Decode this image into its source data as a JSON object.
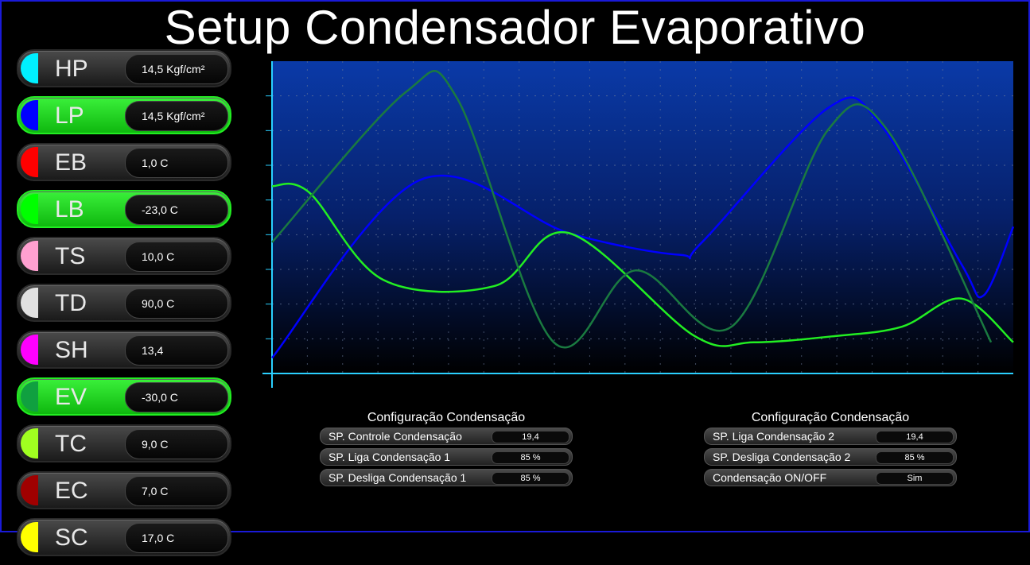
{
  "title": "Setup Condensador Evaporativo",
  "sensors": [
    {
      "label": "HP",
      "value": "14,5 Kgf/cm²",
      "color": "#00f0ff",
      "active": false
    },
    {
      "label": "LP",
      "value": "14,5 Kgf/cm²",
      "color": "#0000ff",
      "active": true
    },
    {
      "label": "EB",
      "value": "1,0 C",
      "color": "#ff0000",
      "active": false
    },
    {
      "label": "LB",
      "value": "-23,0 C",
      "color": "#00ff00",
      "active": true
    },
    {
      "label": "TS",
      "value": "10,0 C",
      "color": "#ffa0d0",
      "active": false
    },
    {
      "label": "TD",
      "value": "90,0 C",
      "color": "#e0e0e0",
      "active": false
    },
    {
      "label": "SH",
      "value": "13,4",
      "color": "#ff00ff",
      "active": false
    },
    {
      "label": "EV",
      "value": "-30,0 C",
      "color": "#10a040",
      "active": true
    },
    {
      "label": "TC",
      "value": "9,0 C",
      "color": "#a0ff20",
      "active": false
    },
    {
      "label": "EC",
      "value": "7,0 C",
      "color": "#a00000",
      "active": false
    },
    {
      "label": "SC",
      "value": "17,0 C",
      "color": "#ffff00",
      "active": false
    }
  ],
  "config_left": {
    "title": "Configuração Condensação",
    "rows": [
      {
        "label": "SP. Controle Condensação",
        "value": "19,4"
      },
      {
        "label": "SP. Liga Condensação 1",
        "value": "85 %"
      },
      {
        "label": "SP. Desliga Condensação 1",
        "value": "85 %"
      }
    ]
  },
  "config_right": {
    "title": "Configuração Condensação",
    "rows": [
      {
        "label": "SP. Liga Condensação 2",
        "value": "19,4"
      },
      {
        "label": "SP. Desliga Condensação 2",
        "value": "85 %"
      },
      {
        "label": "Condensação ON/OFF",
        "value": "Sim"
      }
    ]
  },
  "chart_data": {
    "type": "line",
    "title": "",
    "xlabel": "",
    "ylabel": "",
    "xlim": [
      0,
      100
    ],
    "ylim": [
      0,
      100
    ],
    "grid": true,
    "series": [
      {
        "color": "#0000ff",
        "x": [
          0,
          20,
          40,
          55,
          58,
          75,
          82,
          93,
          96,
          100
        ],
        "y": [
          5,
          62,
          45,
          38,
          42,
          85,
          80,
          35,
          25,
          47
        ]
      },
      {
        "color": "#22ee22",
        "x": [
          0,
          5,
          15,
          30,
          40,
          57,
          65,
          76,
          85,
          93,
          100
        ],
        "y": [
          60,
          58,
          30,
          28,
          45,
          12,
          10,
          12,
          15,
          24,
          10
        ]
      },
      {
        "color": "#1a7a40",
        "x": [
          0,
          18,
          25,
          38,
          49,
          62,
          75,
          83,
          97
        ],
        "y": [
          42,
          90,
          88,
          10,
          33,
          15,
          78,
          78,
          10
        ]
      }
    ]
  }
}
